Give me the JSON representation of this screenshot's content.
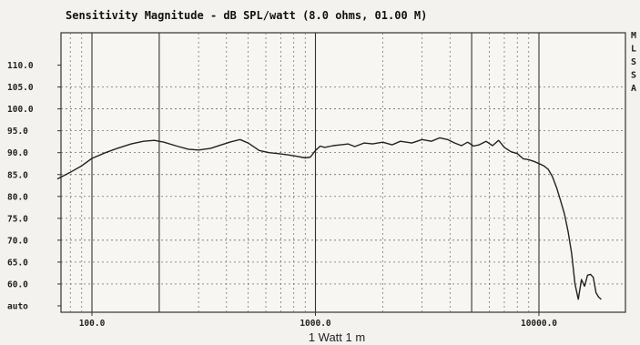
{
  "chart_data": {
    "type": "line",
    "title": "Sensitivity Magnitude - dB SPL/watt (8.0 ohms, 01.00 M)",
    "xlabel": "1 Watt 1 m",
    "ylabel": "",
    "x_scale": "log",
    "xlim": [
      70,
      20000
    ],
    "ylim": [
      55,
      115
    ],
    "grid": true,
    "y_ticks": [
      {
        "value": 110,
        "label": "110.0"
      },
      {
        "value": 105,
        "label": "105.0"
      },
      {
        "value": 100,
        "label": "100.0"
      },
      {
        "value": 95,
        "label": "95.0"
      },
      {
        "value": 90,
        "label": "90.0"
      },
      {
        "value": 85,
        "label": "85.0"
      },
      {
        "value": 80,
        "label": "80.0"
      },
      {
        "value": 75,
        "label": "75.0"
      },
      {
        "value": 70,
        "label": "70.0"
      },
      {
        "value": 65,
        "label": "65.0"
      },
      {
        "value": 60,
        "label": "60.0"
      },
      {
        "value": 55,
        "label": "auto"
      }
    ],
    "x_ticks": [
      {
        "value": 100,
        "label": "100.0"
      },
      {
        "value": 1000,
        "label": "1000.0"
      },
      {
        "value": 10000,
        "label": "10000.0"
      }
    ],
    "side_letters": [
      "M",
      "L",
      "S",
      "S",
      "A"
    ],
    "series": [
      {
        "color": "#222222",
        "x": [
          70,
          80,
          90,
          100,
          115,
          130,
          150,
          170,
          190,
          210,
          240,
          270,
          300,
          340,
          380,
          420,
          460,
          500,
          560,
          620,
          680,
          750,
          820,
          900,
          950,
          1000,
          1050,
          1100,
          1200,
          1300,
          1400,
          1500,
          1650,
          1800,
          2000,
          2200,
          2400,
          2700,
          3000,
          3300,
          3600,
          3900,
          4200,
          4500,
          4800,
          5100,
          5400,
          5800,
          6200,
          6600,
          7000,
          7500,
          8000,
          8500,
          9000,
          9500,
          10000,
          10500,
          11000,
          11500,
          12000,
          12500,
          13000,
          13500,
          14000,
          14500,
          15000,
          15500,
          16000,
          16500,
          17000,
          17500,
          18000,
          18500,
          19000
        ],
        "values": [
          84.0,
          85.5,
          87.0,
          88.7,
          90.0,
          91.0,
          92.0,
          92.6,
          92.8,
          92.4,
          91.5,
          90.8,
          90.6,
          91.0,
          91.8,
          92.5,
          93.0,
          92.2,
          90.5,
          90.0,
          89.8,
          89.5,
          89.2,
          88.8,
          89.0,
          90.5,
          91.5,
          91.2,
          91.6,
          91.8,
          92.0,
          91.4,
          92.2,
          92.0,
          92.4,
          91.8,
          92.6,
          92.2,
          93.0,
          92.6,
          93.4,
          93.0,
          92.2,
          91.6,
          92.4,
          91.5,
          91.8,
          92.6,
          91.6,
          92.8,
          91.2,
          90.2,
          89.8,
          88.6,
          88.4,
          88.0,
          87.5,
          87.0,
          86.2,
          84.5,
          82.0,
          79.0,
          76.0,
          72.0,
          67.0,
          60.0,
          56.5,
          61.0,
          59.5,
          62.0,
          62.2,
          61.5,
          58.0,
          57.0,
          56.5
        ]
      }
    ]
  }
}
